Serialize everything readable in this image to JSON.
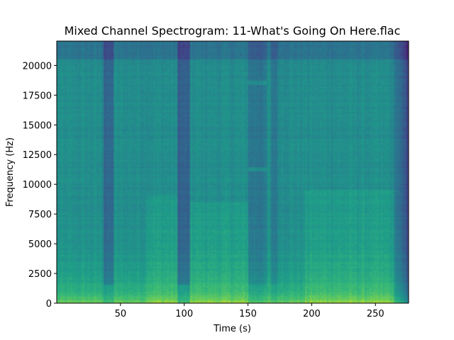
{
  "chart_data": {
    "type": "heatmap",
    "title": "Mixed Channel Spectrogram: 11-What's Going On Here.flac",
    "xlabel": "Time (s)",
    "ylabel": "Frequency (Hz)",
    "xlim": [
      0,
      276
    ],
    "ylim": [
      0,
      22050
    ],
    "x_ticks": [
      50,
      100,
      150,
      200,
      250
    ],
    "y_ticks": [
      0,
      2500,
      5000,
      7500,
      10000,
      12500,
      15000,
      17500,
      20000
    ],
    "colormap": "viridis",
    "grid": false,
    "legend": "none",
    "spectrogram": {
      "low_freq_energy_band_hz": [
        0,
        1000
      ],
      "high_freq_rolloff_hz": 20500,
      "fade_out_start_s": 262,
      "content_end_s": 276,
      "low_energy_gaps": [
        {
          "t_start": 36,
          "t_end": 44,
          "level": 0.28
        },
        {
          "t_start": 94,
          "t_end": 104,
          "level": 0.2
        },
        {
          "t_start": 150,
          "t_end": 165,
          "level": 0.58
        },
        {
          "t_start": 168,
          "t_end": 174,
          "level": 0.62
        }
      ],
      "loud_sections": [
        {
          "t_start": 70,
          "t_end": 94,
          "max_freq_hz": 9000
        },
        {
          "t_start": 104,
          "t_end": 150,
          "max_freq_hz": 8500
        },
        {
          "t_start": 195,
          "t_end": 265,
          "max_freq_hz": 9500
        }
      ],
      "tone_lines": [
        {
          "freq_hz": 11300,
          "t_start": 150,
          "t_end": 165
        },
        {
          "freq_hz": 18600,
          "t_start": 150,
          "t_end": 165
        }
      ]
    },
    "colors": {
      "low": "#2a788e",
      "mid": "#22a884",
      "high": "#bddf26",
      "peak": "#d8e219"
    }
  }
}
